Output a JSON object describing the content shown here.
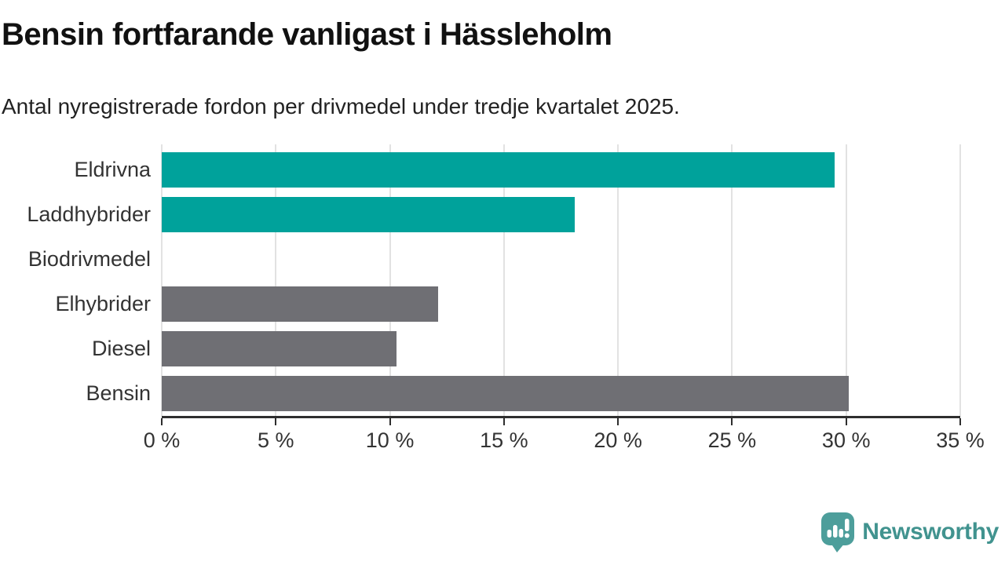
{
  "header": {
    "title": "Bensin fortfarande vanligast i Hässleholm",
    "subtitle": "Antal nyregistrerade fordon per drivmedel under tredje kvartalet 2025."
  },
  "chart_data": {
    "type": "bar",
    "orientation": "horizontal",
    "title": "Bensin fortfarande vanligast i Hässleholm",
    "subtitle": "Antal nyregistrerade fordon per drivmedel under tredje kvartalet 2025.",
    "xlabel": "",
    "ylabel": "",
    "categories": [
      "Eldrivna",
      "Laddhybrider",
      "Biodrivmedel",
      "Elhybrider",
      "Diesel",
      "Bensin"
    ],
    "values": [
      29.5,
      18.1,
      0,
      12.1,
      10.3,
      30.1
    ],
    "bar_colors": [
      "#00a29b",
      "#00a29b",
      "#00a29b",
      "#6f6f74",
      "#6f6f74",
      "#6f6f74"
    ],
    "xlim": [
      0,
      35
    ],
    "xticks": [
      0,
      5,
      10,
      15,
      20,
      25,
      30,
      35
    ],
    "xtick_labels": [
      "0 %",
      "5 %",
      "10 %",
      "15 %",
      "20 %",
      "25 %",
      "30 %",
      "35 %"
    ],
    "grid": "vertical",
    "legend": "none"
  },
  "colors": {
    "teal": "#00a29b",
    "gray": "#6f6f74",
    "gridline": "#e2e2e2",
    "axis": "#2e2e2e",
    "text": "#333333",
    "logo": "#41938f"
  },
  "footer": {
    "brand": "Newsworthy",
    "logo_icon": "bar-chart-speech-bubble-icon"
  }
}
